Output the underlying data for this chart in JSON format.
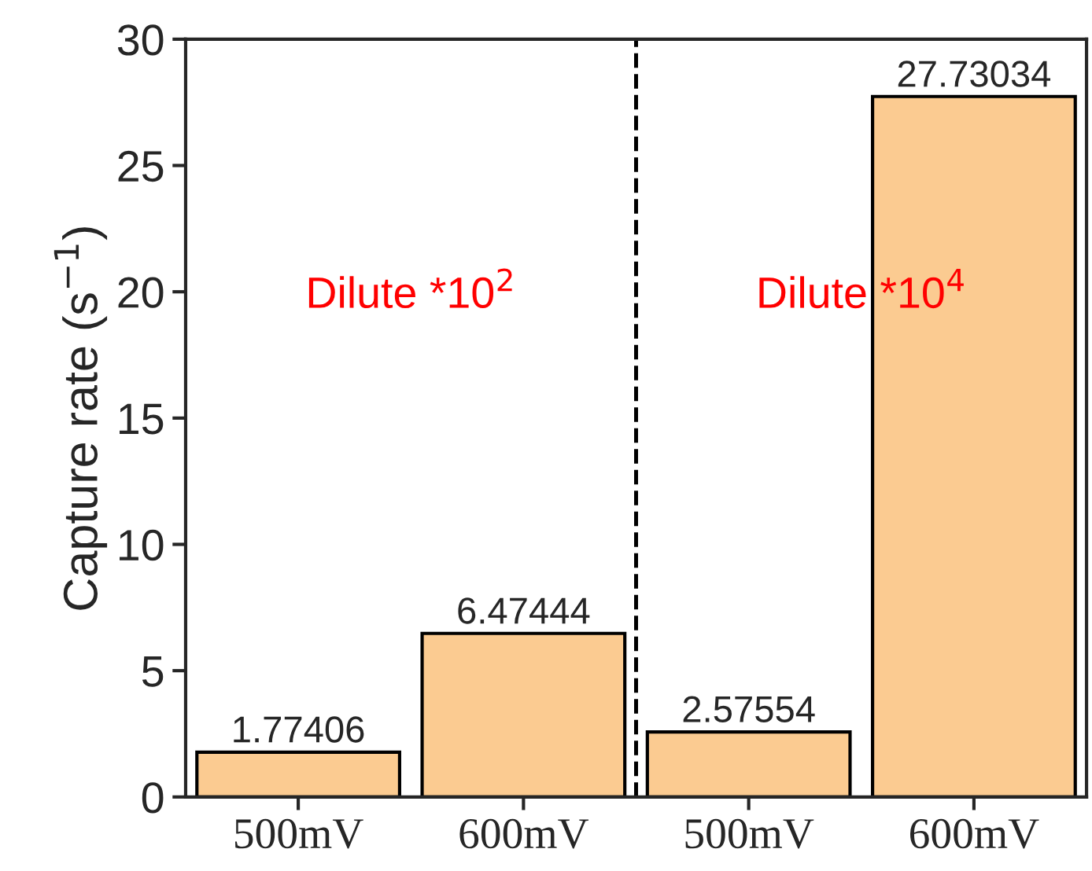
{
  "chart_data": {
    "type": "bar",
    "ylabel": "Capture rate (s$^{−1}$)",
    "categories": [
      "500mV",
      "600mV",
      "500mV",
      "600mV"
    ],
    "values": [
      1.77406,
      6.47444,
      2.57554,
      27.73034
    ],
    "color": "#fbcb91",
    "data_labels": true,
    "ylim": [
      0,
      30
    ],
    "yticks": [
      0,
      5,
      10,
      15,
      20,
      25,
      30
    ],
    "grid": false,
    "legend": false,
    "annotations": [
      "Dilute *10$^{2}$",
      "Dilute *10$^{4}$"
    ]
  }
}
